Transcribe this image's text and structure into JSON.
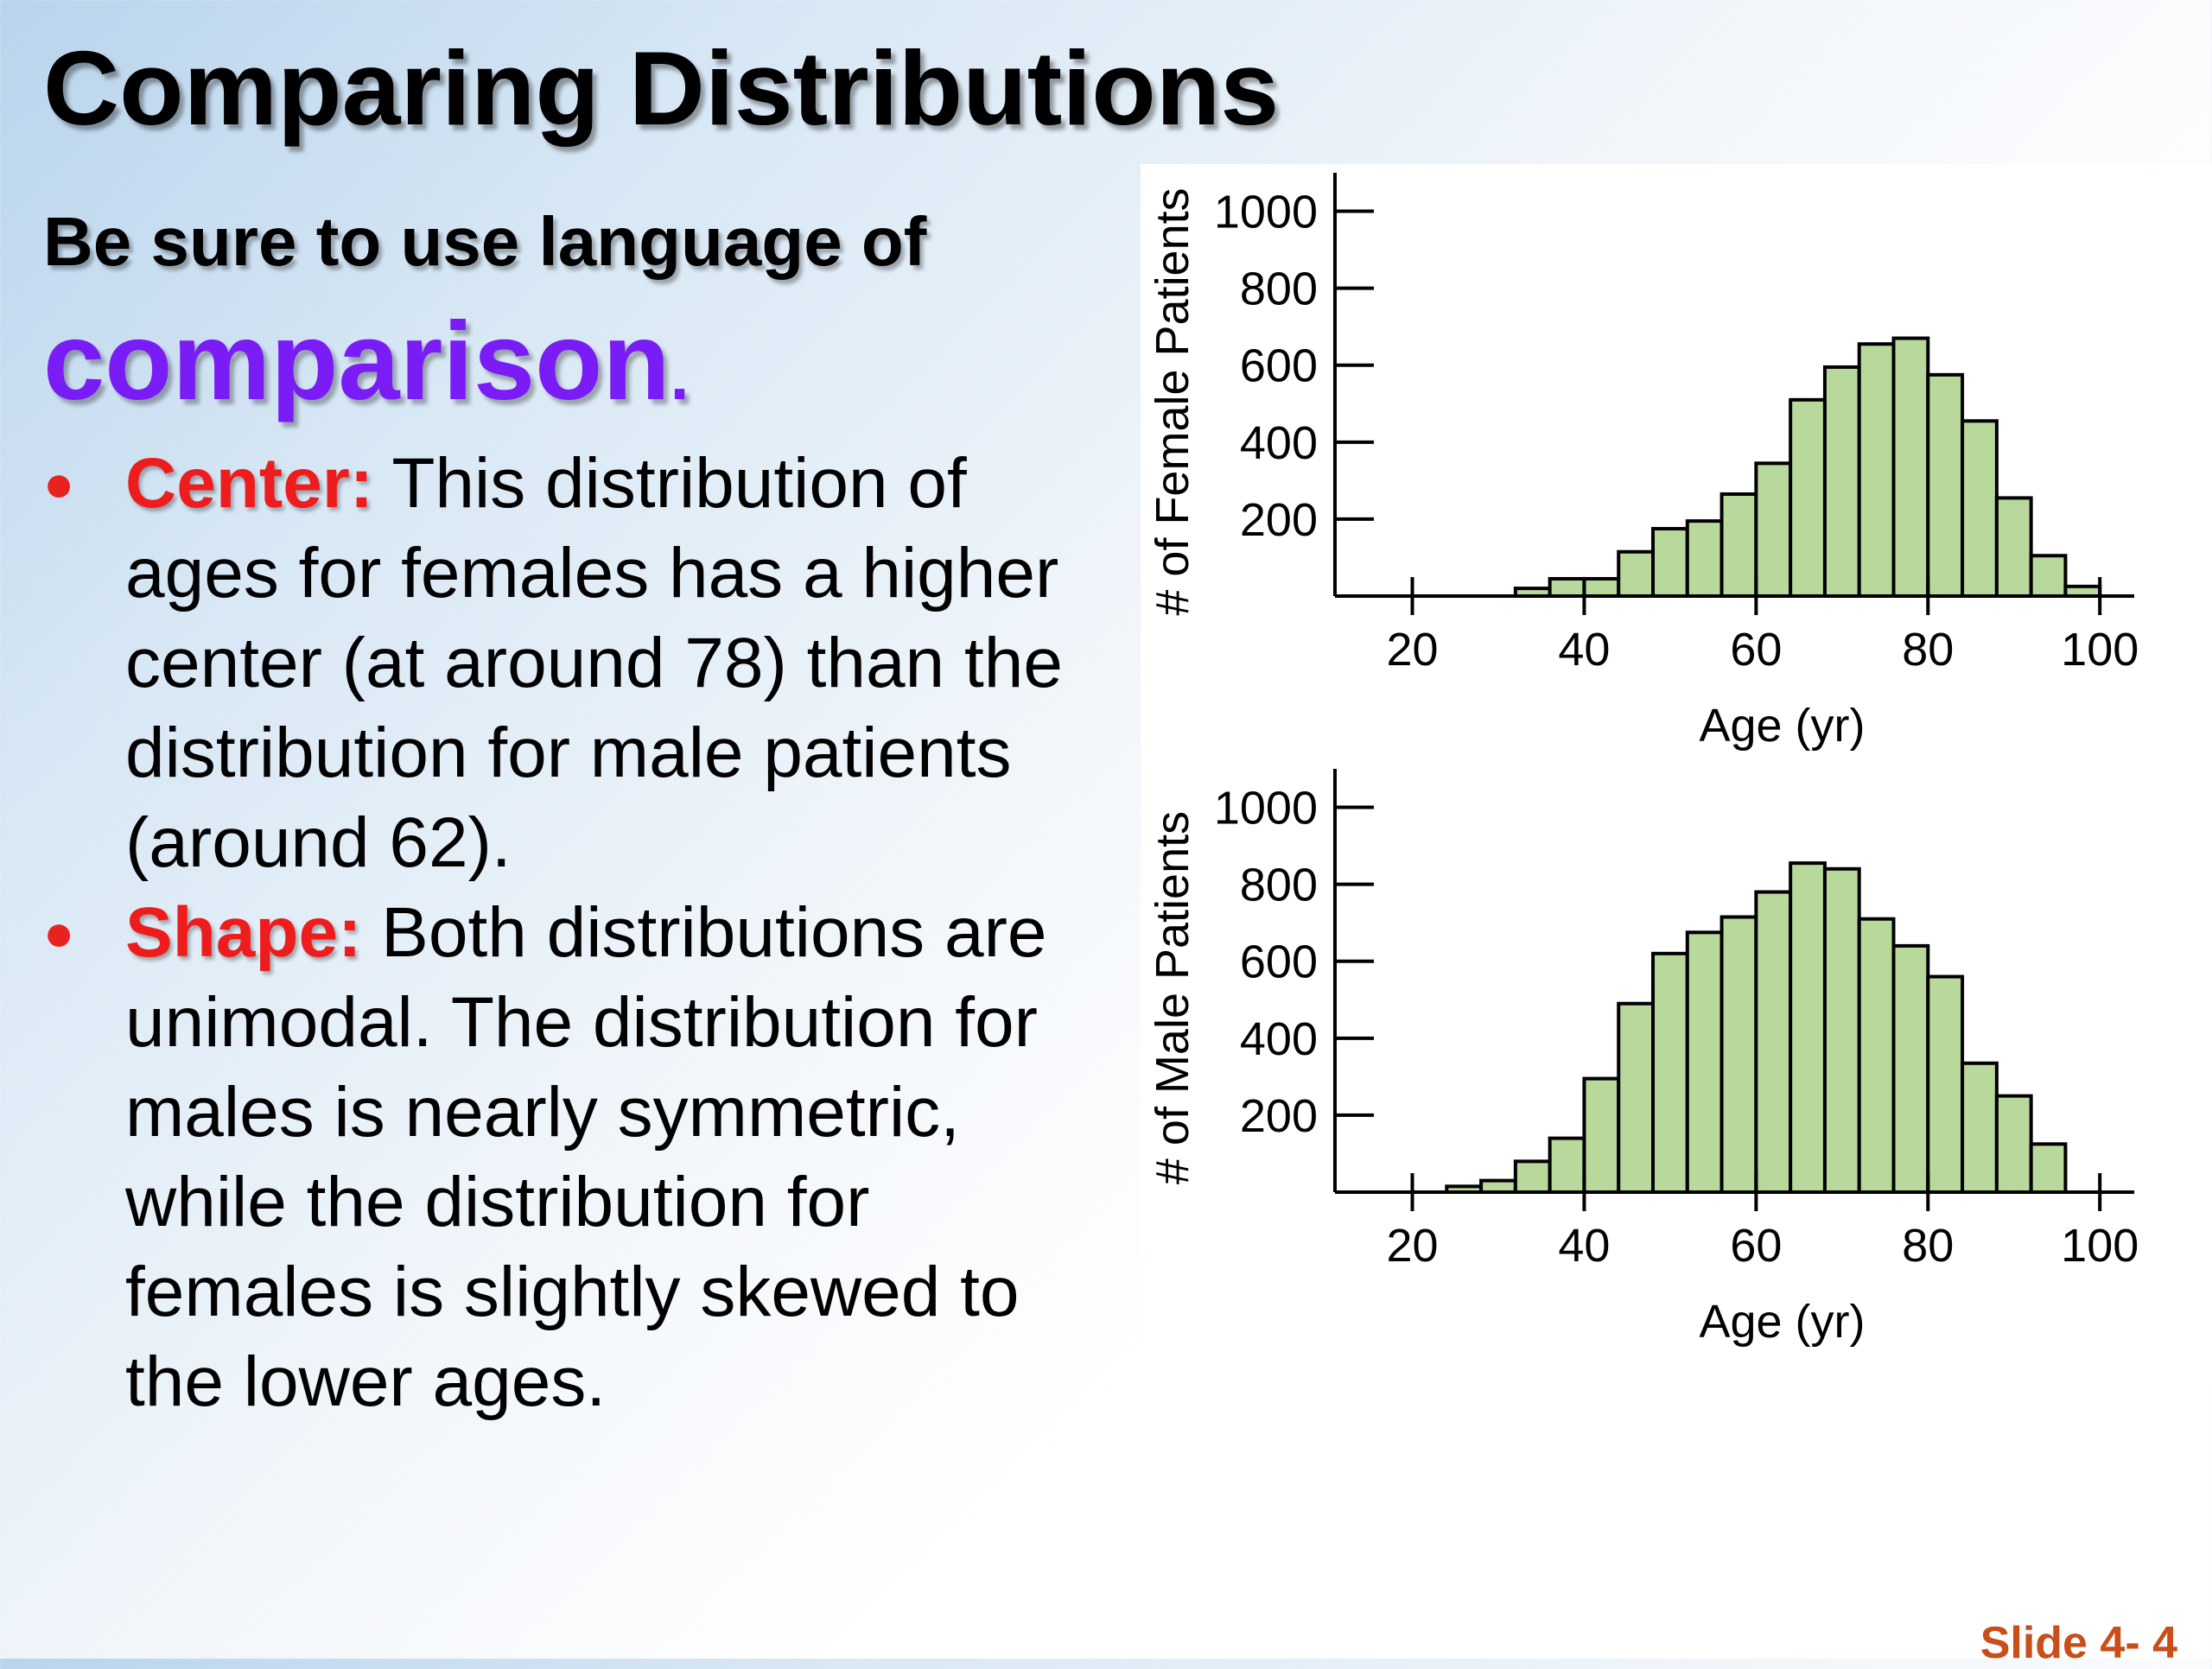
{
  "slide": {
    "title": "Comparing Distributions",
    "subheading": "Be sure to use language of",
    "emphasis": "comparison",
    "emphasis_period": ".",
    "bullets": [
      {
        "term": "Center:",
        "text": " This distribution of ages for females has a higher center (at around 78) than the distribution for male patients (around 62)."
      },
      {
        "term": "Shape:",
        "text": " Both distributions are unimodal.  The distribution for males is nearly symmetric, while the distribution for females is slightly skewed to the lower ages."
      }
    ],
    "footer": "Slide 4- 4"
  },
  "colors": {
    "bar_fill": "#b8d99b",
    "bar_stroke": "#000000",
    "emphasis": "#7a1cf5",
    "bullet_term": "#ee1c1c",
    "footer": "#c94f1a"
  },
  "chart_data": [
    {
      "type": "bar",
      "xlabel": "Age (yr)",
      "ylabel": "# of Female Patients",
      "xlim": [
        11,
        104
      ],
      "ylim": [
        0,
        1100
      ],
      "xticks": [
        20,
        40,
        60,
        80,
        100
      ],
      "yticks": [
        200,
        400,
        600,
        800,
        1000
      ],
      "bin_width": 4,
      "bin_starts": [
        32,
        36,
        40,
        44,
        48,
        52,
        56,
        60,
        64,
        68,
        72,
        76,
        80,
        84,
        88,
        92,
        96,
        100
      ],
      "values": [
        20,
        45,
        45,
        115,
        175,
        195,
        265,
        345,
        510,
        595,
        655,
        670,
        575,
        455,
        255,
        105,
        25,
        0
      ],
      "grid": false
    },
    {
      "type": "bar",
      "xlabel": "Age (yr)",
      "ylabel": "# of Male Patients",
      "xlim": [
        11,
        104
      ],
      "ylim": [
        0,
        1100
      ],
      "xticks": [
        20,
        40,
        60,
        80,
        100
      ],
      "yticks": [
        200,
        400,
        600,
        800,
        1000
      ],
      "bin_width": 4,
      "bin_starts": [
        24,
        28,
        32,
        36,
        40,
        44,
        48,
        52,
        56,
        60,
        64,
        68,
        72,
        76,
        80,
        84,
        88,
        92
      ],
      "values": [
        15,
        30,
        80,
        140,
        295,
        490,
        620,
        675,
        715,
        780,
        855,
        840,
        710,
        640,
        560,
        335,
        250,
        125
      ],
      "grid": false
    }
  ]
}
